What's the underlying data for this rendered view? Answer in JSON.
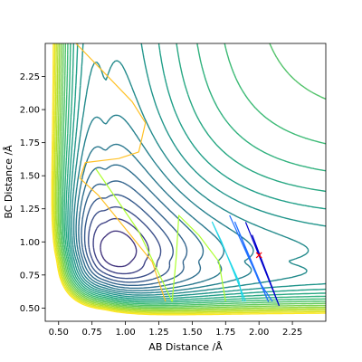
{
  "chart_data": {
    "type": "contour",
    "title": "",
    "xlabel": "AB Distance /Å",
    "ylabel": "BC Distance /Å",
    "xlim": [
      0.4,
      2.5
    ],
    "ylim": [
      0.4,
      2.5
    ],
    "x_ticks": [
      "0.50",
      "0.75",
      "1.00",
      "1.25",
      "1.50",
      "1.75",
      "2.00",
      "2.25"
    ],
    "y_ticks": [
      "0.50",
      "0.75",
      "1.00",
      "1.25",
      "1.50",
      "1.75",
      "2.00",
      "2.25"
    ],
    "grid": false,
    "legend": "none",
    "colormap": "viridis",
    "contour_levels": 26,
    "trajectories": [
      {
        "color": "#ffc125",
        "points": [
          [
            0.63,
            2.5
          ],
          [
            1.05,
            2.06
          ],
          [
            1.15,
            1.9
          ],
          [
            1.1,
            1.68
          ],
          [
            0.95,
            1.63
          ],
          [
            0.7,
            1.6
          ],
          [
            0.66,
            1.48
          ],
          [
            0.8,
            1.35
          ],
          [
            1.2,
            0.85
          ],
          [
            1.3,
            0.55
          ]
        ]
      },
      {
        "color": "#adff2f",
        "points": [
          [
            0.78,
            1.55
          ],
          [
            1.1,
            1.08
          ],
          [
            1.35,
            0.55
          ],
          [
            1.38,
            0.88
          ],
          [
            1.4,
            1.2
          ],
          [
            1.55,
            1.05
          ],
          [
            1.7,
            0.85
          ],
          [
            1.75,
            0.55
          ]
        ]
      },
      {
        "color": "#1fd7e8",
        "points": [
          [
            1.9,
            0.55
          ],
          [
            1.72,
            1.0
          ],
          [
            1.65,
            1.15
          ],
          [
            1.85,
            0.7
          ],
          [
            1.88,
            0.55
          ]
        ]
      },
      {
        "color": "#1f6fff",
        "points": [
          [
            1.78,
            1.2
          ],
          [
            2.07,
            0.55
          ],
          [
            1.82,
            1.15
          ],
          [
            2.0,
            0.7
          ],
          [
            2.1,
            0.55
          ]
        ]
      },
      {
        "color": "#0000cc",
        "points": [
          [
            1.9,
            1.15
          ],
          [
            2.15,
            0.52
          ],
          [
            1.95,
            1.05
          ],
          [
            2.12,
            0.6
          ]
        ]
      }
    ],
    "marker": {
      "x": 2.0,
      "y": 0.9,
      "symbol": "x",
      "color": "#ff0000"
    }
  }
}
